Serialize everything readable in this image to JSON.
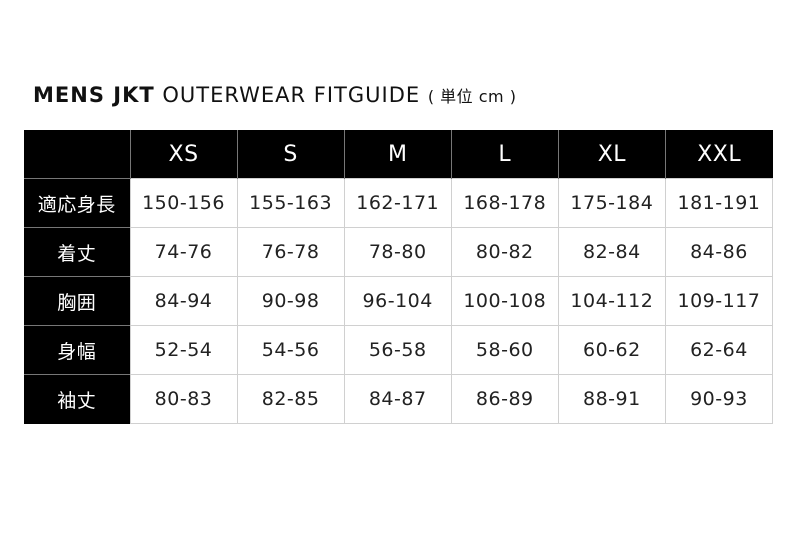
{
  "title": {
    "bold": "MENS JKT",
    "light": "OUTERWEAR FITGUIDE",
    "unit": "( 単位 cm )"
  },
  "table": {
    "headers": [
      "",
      "XS",
      "S",
      "M",
      "L",
      "XL",
      "XXL"
    ],
    "rows": [
      {
        "label": "適応身長",
        "values": [
          "150-156",
          "155-163",
          "162-171",
          "168-178",
          "175-184",
          "181-191"
        ]
      },
      {
        "label": "着丈",
        "values": [
          "74-76",
          "76-78",
          "78-80",
          "80-82",
          "82-84",
          "84-86"
        ]
      },
      {
        "label": "胸囲",
        "values": [
          "84-94",
          "90-98",
          "96-104",
          "100-108",
          "104-112",
          "109-117"
        ]
      },
      {
        "label": "身幅",
        "values": [
          "52-54",
          "54-56",
          "56-58",
          "58-60",
          "60-62",
          "62-64"
        ]
      },
      {
        "label": "袖丈",
        "values": [
          "80-83",
          "82-85",
          "84-87",
          "86-89",
          "88-91",
          "90-93"
        ]
      }
    ]
  }
}
